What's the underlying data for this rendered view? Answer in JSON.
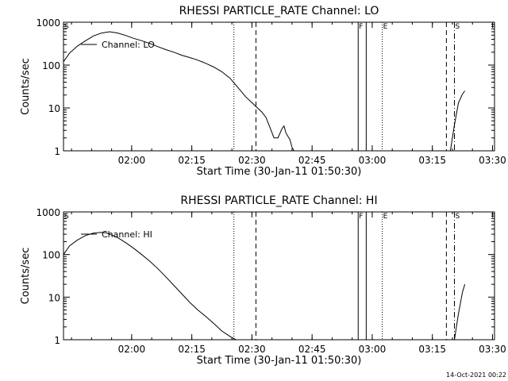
{
  "footer": {
    "timestamp": "14-Oct-2021 00:22"
  },
  "chart_data": [
    {
      "type": "line",
      "title": "RHESSI PARTICLE_RATE Channel: LO",
      "xlabel": "Start Time (30-Jan-11 01:50:30)",
      "ylabel": "Counts/sec",
      "xlim_minutes": [
        -7.5,
        100
      ],
      "ylim": [
        1,
        1000
      ],
      "yscale": "log",
      "grid": false,
      "x_ticks": [
        {
          "t": 9.5,
          "label": "02:00"
        },
        {
          "t": 24.5,
          "label": "02:15"
        },
        {
          "t": 39.5,
          "label": "02:30"
        },
        {
          "t": 54.5,
          "label": "02:45"
        },
        {
          "t": 69.5,
          "label": "03:00"
        },
        {
          "t": 84.5,
          "label": "03:15"
        },
        {
          "t": 99.5,
          "label": "03:30"
        }
      ],
      "y_ticks": [
        {
          "v": 1,
          "label": "1"
        },
        {
          "v": 10,
          "label": "10"
        },
        {
          "v": 100,
          "label": "100"
        },
        {
          "v": 1000,
          "label": "1000"
        }
      ],
      "legend": {
        "position": "top-left",
        "label": "Channel: LO"
      },
      "series": [
        {
          "name": "Channel: LO",
          "segments": [
            [
              [
                -7.5,
                120
              ],
              [
                -6,
                190
              ],
              [
                -4,
                280
              ],
              [
                -2,
                370
              ],
              [
                0,
                480
              ],
              [
                2,
                560
              ],
              [
                4,
                600
              ],
              [
                6,
                560
              ],
              [
                8,
                490
              ],
              [
                10,
                420
              ],
              [
                12,
                370
              ],
              [
                14,
                320
              ],
              [
                16,
                270
              ],
              [
                18,
                230
              ],
              [
                20,
                200
              ],
              [
                22,
                170
              ],
              [
                24,
                150
              ],
              [
                26,
                130
              ],
              [
                28,
                110
              ],
              [
                30,
                90
              ],
              [
                32,
                70
              ],
              [
                34,
                50
              ],
              [
                36,
                30
              ],
              [
                38,
                18
              ],
              [
                40,
                12
              ],
              [
                42,
                8
              ],
              [
                43,
                6
              ],
              [
                44,
                3.5
              ],
              [
                45,
                2
              ],
              [
                46,
                2
              ],
              [
                47,
                3.3
              ],
              [
                47.5,
                3.8
              ],
              [
                48,
                2.6
              ],
              [
                49,
                1.8
              ],
              [
                49.5,
                1.2
              ],
              [
                50,
                1
              ]
            ],
            [
              [
                89,
                1
              ],
              [
                90,
                4
              ],
              [
                91,
                13
              ],
              [
                92,
                21
              ],
              [
                92.6,
                25
              ]
            ]
          ]
        }
      ],
      "markers": [
        {
          "label": "S",
          "t": -7.5,
          "style": "text"
        },
        {
          "label": "",
          "t": 35,
          "style": "dotted"
        },
        {
          "label": "",
          "t": 40.5,
          "style": "dashed"
        },
        {
          "label": "F",
          "t": 66,
          "style": "solid"
        },
        {
          "label": "",
          "t": 68,
          "style": "solid"
        },
        {
          "label": "E",
          "t": 72,
          "style": "dotted"
        },
        {
          "label": "",
          "t": 88,
          "style": "dashed"
        },
        {
          "label": "S",
          "t": 90,
          "style": "dashdot"
        }
      ]
    },
    {
      "type": "line",
      "title": "RHESSI PARTICLE_RATE Channel: HI",
      "xlabel": "Start Time (30-Jan-11 01:50:30)",
      "ylabel": "Counts/sec",
      "xlim_minutes": [
        -7.5,
        100
      ],
      "ylim": [
        1,
        1000
      ],
      "yscale": "log",
      "grid": false,
      "x_ticks": [
        {
          "t": 9.5,
          "label": "02:00"
        },
        {
          "t": 24.5,
          "label": "02:15"
        },
        {
          "t": 39.5,
          "label": "02:30"
        },
        {
          "t": 54.5,
          "label": "02:45"
        },
        {
          "t": 69.5,
          "label": "03:00"
        },
        {
          "t": 84.5,
          "label": "03:15"
        },
        {
          "t": 99.5,
          "label": "03:30"
        }
      ],
      "y_ticks": [
        {
          "v": 1,
          "label": "1"
        },
        {
          "v": 10,
          "label": "10"
        },
        {
          "v": 100,
          "label": "100"
        },
        {
          "v": 1000,
          "label": "1000"
        }
      ],
      "legend": {
        "position": "top-left",
        "label": "Channel: HI"
      },
      "series": [
        {
          "name": "Channel: HI",
          "segments": [
            [
              [
                -7.5,
                100
              ],
              [
                -6,
                160
              ],
              [
                -4,
                220
              ],
              [
                -2,
                280
              ],
              [
                0,
                320
              ],
              [
                2,
                330
              ],
              [
                3,
                325
              ],
              [
                4,
                300
              ],
              [
                6,
                250
              ],
              [
                8,
                190
              ],
              [
                10,
                140
              ],
              [
                12,
                100
              ],
              [
                14,
                70
              ],
              [
                16,
                47
              ],
              [
                18,
                30
              ],
              [
                20,
                19
              ],
              [
                22,
                12
              ],
              [
                24,
                7.5
              ],
              [
                26,
                5
              ],
              [
                28,
                3.5
              ],
              [
                30,
                2.4
              ],
              [
                32,
                1.6
              ],
              [
                34,
                1.2
              ],
              [
                35.5,
                1
              ]
            ],
            [
              [
                90,
                1
              ],
              [
                91,
                4
              ],
              [
                92,
                13
              ],
              [
                92.6,
                20
              ]
            ]
          ]
        }
      ],
      "markers": [
        {
          "label": "S",
          "t": -7.5,
          "style": "text"
        },
        {
          "label": "",
          "t": 35,
          "style": "dotted"
        },
        {
          "label": "",
          "t": 40.5,
          "style": "dashed"
        },
        {
          "label": "F",
          "t": 66,
          "style": "solid"
        },
        {
          "label": "",
          "t": 68,
          "style": "solid"
        },
        {
          "label": "E",
          "t": 72,
          "style": "dotted"
        },
        {
          "label": "",
          "t": 88,
          "style": "dashed"
        },
        {
          "label": "S",
          "t": 90,
          "style": "dashdot"
        }
      ]
    }
  ]
}
